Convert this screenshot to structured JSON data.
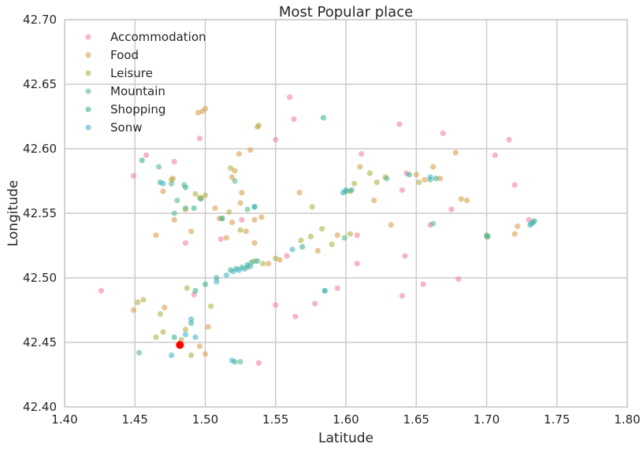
{
  "chart_data": {
    "type": "scatter",
    "title": "Most Popular place",
    "xlabel": "Latitude",
    "ylabel": "Longitude",
    "xlim": [
      1.4,
      1.8
    ],
    "ylim": [
      42.4,
      42.7
    ],
    "xticks": [
      "1.40",
      "1.45",
      "1.50",
      "1.55",
      "1.60",
      "1.65",
      "1.70",
      "1.75",
      "1.80"
    ],
    "yticks": [
      "42.40",
      "42.45",
      "42.50",
      "42.55",
      "42.60",
      "42.65",
      "42.70"
    ],
    "grid": true,
    "legend_position": "top-left",
    "series": [
      {
        "name": "Accommodation",
        "color": "#f0859e",
        "points": [
          [
            1.426,
            42.49
          ],
          [
            1.449,
            42.579
          ],
          [
            1.458,
            42.595
          ],
          [
            1.478,
            42.59
          ],
          [
            1.486,
            42.527
          ],
          [
            1.496,
            42.608
          ],
          [
            1.511,
            42.53
          ],
          [
            1.538,
            42.434
          ],
          [
            1.55,
            42.607
          ],
          [
            1.55,
            42.479
          ],
          [
            1.56,
            42.64
          ],
          [
            1.563,
            42.623
          ],
          [
            1.564,
            42.47
          ],
          [
            1.578,
            42.48
          ],
          [
            1.594,
            42.492
          ],
          [
            1.608,
            42.511
          ],
          [
            1.608,
            42.533
          ],
          [
            1.611,
            42.596
          ],
          [
            1.638,
            42.619
          ],
          [
            1.64,
            42.486
          ],
          [
            1.642,
            42.517
          ],
          [
            1.643,
            42.581
          ],
          [
            1.655,
            42.495
          ],
          [
            1.66,
            42.541
          ],
          [
            1.669,
            42.612
          ],
          [
            1.675,
            42.553
          ],
          [
            1.68,
            42.499
          ],
          [
            1.706,
            42.595
          ],
          [
            1.716,
            42.607
          ],
          [
            1.72,
            42.572
          ],
          [
            1.73,
            42.545
          ],
          [
            1.64,
            42.568
          ],
          [
            1.526,
            42.545
          ],
          [
            1.558,
            42.517
          ],
          [
            1.492,
            42.487
          ]
        ]
      },
      {
        "name": "Food",
        "color": "#d9a04e",
        "points": [
          [
            1.449,
            42.475
          ],
          [
            1.465,
            42.533
          ],
          [
            1.47,
            42.567
          ],
          [
            1.471,
            42.477
          ],
          [
            1.477,
            42.577
          ],
          [
            1.478,
            42.545
          ],
          [
            1.486,
            42.553
          ],
          [
            1.49,
            42.536
          ],
          [
            1.495,
            42.628
          ],
          [
            1.498,
            42.629
          ],
          [
            1.5,
            42.631
          ],
          [
            1.497,
            42.562
          ],
          [
            1.502,
            42.462
          ],
          [
            1.5,
            42.441
          ],
          [
            1.496,
            42.447
          ],
          [
            1.507,
            42.554
          ],
          [
            1.51,
            42.546
          ],
          [
            1.515,
            42.531
          ],
          [
            1.519,
            42.543
          ],
          [
            1.519,
            42.578
          ],
          [
            1.521,
            42.583
          ],
          [
            1.524,
            42.596
          ],
          [
            1.526,
            42.566
          ],
          [
            1.529,
            42.536
          ],
          [
            1.532,
            42.599
          ],
          [
            1.535,
            42.545
          ],
          [
            1.535,
            42.527
          ],
          [
            1.537,
            42.617
          ],
          [
            1.54,
            42.547
          ],
          [
            1.567,
            42.566
          ],
          [
            1.58,
            42.521
          ],
          [
            1.594,
            42.533
          ],
          [
            1.61,
            42.586
          ],
          [
            1.62,
            42.56
          ],
          [
            1.628,
            42.578
          ],
          [
            1.632,
            42.541
          ],
          [
            1.65,
            42.58
          ],
          [
            1.656,
            42.576
          ],
          [
            1.662,
            42.586
          ],
          [
            1.667,
            42.577
          ],
          [
            1.678,
            42.597
          ],
          [
            1.682,
            42.561
          ],
          [
            1.686,
            42.56
          ],
          [
            1.72,
            42.534
          ],
          [
            1.722,
            42.54
          ],
          [
            1.553,
            42.514
          ],
          [
            1.545,
            42.511
          ],
          [
            1.525,
            42.558
          ]
        ]
      },
      {
        "name": "Leisure",
        "color": "#b0b24a",
        "points": [
          [
            1.452,
            42.481
          ],
          [
            1.456,
            42.483
          ],
          [
            1.465,
            42.454
          ],
          [
            1.47,
            42.458
          ],
          [
            1.476,
            42.576
          ],
          [
            1.483,
            42.452
          ],
          [
            1.486,
            42.46
          ],
          [
            1.49,
            42.44
          ],
          [
            1.493,
            42.565
          ],
          [
            1.496,
            42.562
          ],
          [
            1.5,
            42.564
          ],
          [
            1.504,
            42.478
          ],
          [
            1.512,
            42.546
          ],
          [
            1.517,
            42.551
          ],
          [
            1.525,
            42.537
          ],
          [
            1.53,
            42.508
          ],
          [
            1.535,
            42.513
          ],
          [
            1.541,
            42.511
          ],
          [
            1.55,
            42.515
          ],
          [
            1.568,
            42.529
          ],
          [
            1.575,
            42.532
          ],
          [
            1.583,
            42.538
          ],
          [
            1.59,
            42.526
          ],
          [
            1.603,
            42.534
          ],
          [
            1.606,
            42.573
          ],
          [
            1.617,
            42.581
          ],
          [
            1.622,
            42.574
          ],
          [
            1.652,
            42.574
          ],
          [
            1.7,
            42.532
          ],
          [
            1.518,
            42.585
          ],
          [
            1.468,
            42.472
          ],
          [
            1.487,
            42.492
          ],
          [
            1.538,
            42.618
          ],
          [
            1.576,
            42.555
          ],
          [
            1.603,
            42.567
          ]
        ]
      },
      {
        "name": "Mountain",
        "color": "#5dbb8a",
        "points": [
          [
            1.453,
            42.442
          ],
          [
            1.467,
            42.586
          ],
          [
            1.476,
            42.573
          ],
          [
            1.48,
            42.56
          ],
          [
            1.485,
            42.572
          ],
          [
            1.486,
            42.554
          ],
          [
            1.497,
            42.561
          ],
          [
            1.521,
            42.575
          ],
          [
            1.53,
            42.553
          ],
          [
            1.585,
            42.49
          ],
          [
            1.599,
            42.531
          ],
          [
            1.629,
            42.577
          ],
          [
            1.66,
            42.576
          ],
          [
            1.662,
            42.542
          ],
          [
            1.7,
            42.533
          ],
          [
            1.733,
            42.543
          ],
          [
            1.525,
            42.435
          ],
          [
            1.478,
            42.55
          ]
        ]
      },
      {
        "name": "Shopping",
        "color": "#3fb39a",
        "points": [
          [
            1.455,
            42.591
          ],
          [
            1.468,
            42.574
          ],
          [
            1.478,
            42.454
          ],
          [
            1.482,
            42.448
          ],
          [
            1.486,
            42.57
          ],
          [
            1.49,
            42.465
          ],
          [
            1.492,
            42.554
          ],
          [
            1.493,
            42.49
          ],
          [
            1.5,
            42.495
          ],
          [
            1.508,
            42.5
          ],
          [
            1.512,
            42.546
          ],
          [
            1.518,
            42.506
          ],
          [
            1.522,
            42.507
          ],
          [
            1.526,
            42.508
          ],
          [
            1.53,
            42.51
          ],
          [
            1.533,
            42.512
          ],
          [
            1.537,
            42.513
          ],
          [
            1.535,
            42.555
          ],
          [
            1.569,
            42.524
          ],
          [
            1.584,
            42.624
          ],
          [
            1.598,
            42.566
          ],
          [
            1.6,
            42.567
          ],
          [
            1.604,
            42.568
          ],
          [
            1.645,
            42.58
          ],
          [
            1.664,
            42.577
          ],
          [
            1.701,
            42.532
          ],
          [
            1.731,
            42.541
          ],
          [
            1.734,
            42.544
          ],
          [
            1.521,
            42.435
          ]
        ]
      },
      {
        "name": "Sonw",
        "color": "#48b6c9",
        "points": [
          [
            1.47,
            42.573
          ],
          [
            1.476,
            42.44
          ],
          [
            1.482,
            42.448
          ],
          [
            1.486,
            42.456
          ],
          [
            1.49,
            42.468
          ],
          [
            1.493,
            42.454
          ],
          [
            1.508,
            42.497
          ],
          [
            1.515,
            42.502
          ],
          [
            1.52,
            42.505
          ],
          [
            1.524,
            42.506
          ],
          [
            1.528,
            42.507
          ],
          [
            1.532,
            42.509
          ],
          [
            1.535,
            42.555
          ],
          [
            1.562,
            42.522
          ],
          [
            1.585,
            42.49
          ],
          [
            1.6,
            42.568
          ],
          [
            1.66,
            42.578
          ],
          [
            1.732,
            42.542
          ],
          [
            1.519,
            42.436
          ]
        ]
      }
    ],
    "highlight": {
      "color": "#ff0000",
      "points": [
        [
          1.482,
          42.448
        ]
      ]
    }
  }
}
